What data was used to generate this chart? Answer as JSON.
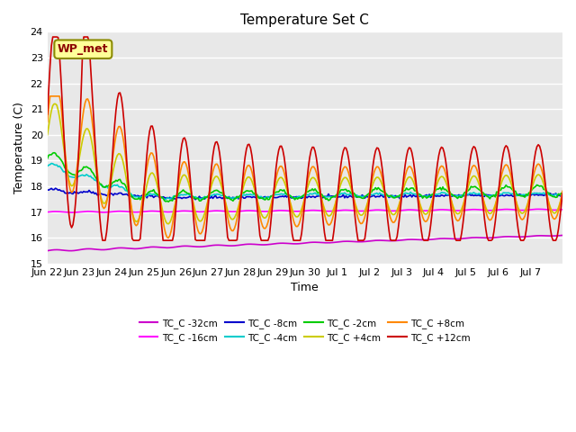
{
  "title": "Temperature Set C",
  "xlabel": "Time",
  "ylabel": "Temperature (C)",
  "ylim": [
    15.0,
    24.0
  ],
  "yticks": [
    15.0,
    16.0,
    17.0,
    18.0,
    19.0,
    20.0,
    21.0,
    22.0,
    23.0,
    24.0
  ],
  "x_tick_positions": [
    0,
    1,
    2,
    3,
    4,
    5,
    6,
    7,
    8,
    9,
    10,
    11,
    12,
    13,
    14,
    15,
    16
  ],
  "x_tick_labels": [
    "Jun 22",
    "Jun 23",
    "Jun 24",
    "Jun 25",
    "Jun 26",
    "Jun 27",
    "Jun 28",
    "Jun 29",
    "Jun 30",
    "Jul 1",
    "Jul 2",
    "Jul 3",
    "Jul 4",
    "Jul 5",
    "Jul 6",
    "Jul 7",
    ""
  ],
  "series": [
    {
      "label": "TC_C -32cm",
      "color": "#CC00CC",
      "lw": 1.2
    },
    {
      "label": "TC_C -16cm",
      "color": "#FF00FF",
      "lw": 1.2
    },
    {
      "label": "TC_C -8cm",
      "color": "#0000CC",
      "lw": 1.2
    },
    {
      "label": "TC_C -4cm",
      "color": "#00CCCC",
      "lw": 1.2
    },
    {
      "label": "TC_C -2cm",
      "color": "#00CC00",
      "lw": 1.2
    },
    {
      "label": "TC_C +4cm",
      "color": "#CCCC00",
      "lw": 1.2
    },
    {
      "label": "TC_C +8cm",
      "color": "#FF8800",
      "lw": 1.2
    },
    {
      "label": "TC_C +12cm",
      "color": "#CC0000",
      "lw": 1.2
    }
  ],
  "wp_met_label": "WP_met",
  "bg_color": "#FFFFFF",
  "plot_bg_color": "#E8E8E8",
  "grid_color": "#FFFFFF"
}
